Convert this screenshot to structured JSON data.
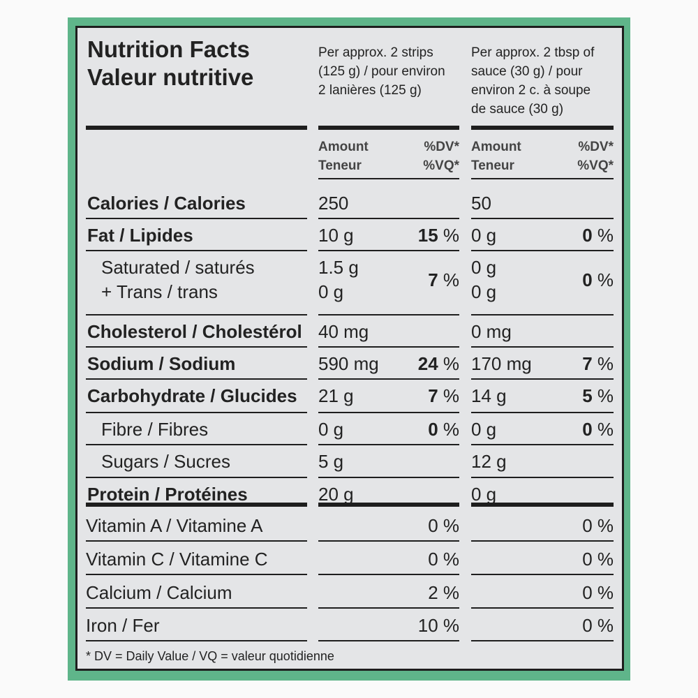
{
  "title_en": "Nutrition Facts",
  "title_fr": "Valeur nutritive",
  "serving1": [
    "Per approx. 2 strips",
    "(125 g) / pour environ",
    "2 lanières (125 g)"
  ],
  "serving2": [
    "Per approx. 2 tbsp of",
    "sauce (30 g) / pour",
    "environ 2 c. à soupe",
    "de sauce (30 g)"
  ],
  "amount_label": "Amount",
  "teneur_label": "Teneur",
  "dv_label": "%DV*",
  "vq_label": "%VQ*",
  "rows": [
    {
      "label": "Calories / Calories",
      "bold": true,
      "v1": "250",
      "v2": "50"
    },
    {
      "label": "Fat / Lipides",
      "bold": true,
      "v1": "10 g",
      "p1": "15",
      "v2": "0 g",
      "p2": "0"
    },
    {
      "label": "Saturated / saturés",
      "label2": "+ Trans / trans",
      "bold": false,
      "indent": true,
      "v1": "1.5 g",
      "v1b": "0 g",
      "p1": "7",
      "v2": "0 g",
      "v2b": "0 g",
      "p2": "0"
    },
    {
      "label": "Cholesterol / Cholestérol",
      "bold": true,
      "v1": "40 mg",
      "v2": "0 mg"
    },
    {
      "label": "Sodium / Sodium",
      "bold": true,
      "v1": "590 mg",
      "p1": "24",
      "v2": "170 mg",
      "p2": "7"
    },
    {
      "label": "Carbohydrate / Glucides",
      "bold": true,
      "v1": "21 g",
      "p1": "7",
      "v2": "14 g",
      "p2": "5"
    },
    {
      "label": "Fibre / Fibres",
      "bold": false,
      "indent": true,
      "v1": "0 g",
      "p1": "0",
      "v2": "0 g",
      "p2": "0"
    },
    {
      "label": "Sugars / Sucres",
      "bold": false,
      "indent": true,
      "v1": "5 g",
      "v2": "12 g"
    },
    {
      "label": "Protein / Protéines",
      "bold": true,
      "v1": "20 g",
      "v2": "0 g"
    }
  ],
  "vitamins": [
    {
      "label": "Vitamin A / Vitamine A",
      "p1": "0 %",
      "p2": "0 %"
    },
    {
      "label": "Vitamin C / Vitamine C",
      "p1": "0 %",
      "p2": "0 %"
    },
    {
      "label": "Calcium / Calcium",
      "p1": "2 %",
      "p2": "0 %"
    },
    {
      "label": "Iron / Fer",
      "p1": "10 %",
      "p2": "0 %"
    }
  ],
  "footnote": "* DV = Daily Value / VQ = valeur quotidienne"
}
